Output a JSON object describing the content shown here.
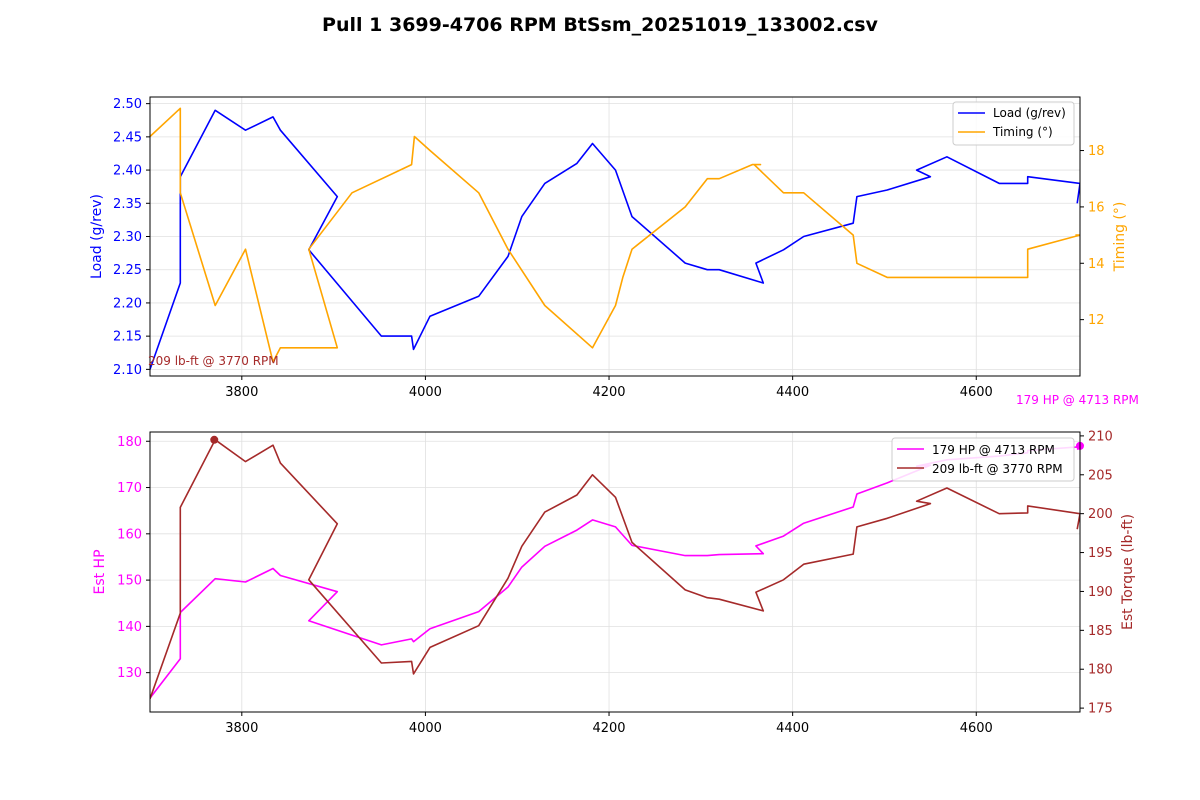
{
  "title": "Pull 1 3699-4706 RPM BtSsm_20251019_133002.csv",
  "colors": {
    "load": "#0000ff",
    "timing": "#ffa500",
    "hp": "#ff00ff",
    "torque": "#a52a2a"
  },
  "chart_data": [
    {
      "type": "line",
      "xlim": [
        3700,
        4713
      ],
      "x_ticks": [
        3800,
        4000,
        4200,
        4400,
        4600
      ],
      "grid": true,
      "legend_position": "top-right",
      "left_axis": {
        "label": "Load (g/rev)",
        "ylim": [
          2.09,
          2.51
        ],
        "ticks": [
          "2.10",
          "2.15",
          "2.20",
          "2.25",
          "2.30",
          "2.35",
          "2.40",
          "2.45",
          "2.50"
        ]
      },
      "right_axis": {
        "label": "Timing (°)",
        "ylim": [
          10,
          19.9
        ],
        "ticks": [
          "12",
          "14",
          "16",
          "18"
        ]
      },
      "series": [
        {
          "name": "Load (g/rev)",
          "axis": "left",
          "x": [
            3700,
            3733,
            3733,
            3771,
            3804,
            3834,
            3842,
            3904,
            3873,
            3952,
            3985,
            3987,
            4005,
            4058,
            4090,
            4105,
            4130,
            4165,
            4182,
            4207,
            4225,
            4283,
            4307,
            4320,
            4368,
            4360,
            4390,
            4412,
            4466,
            4470,
            4503,
            4550,
            4535,
            4568,
            4625,
            4656,
            4656,
            4713,
            4710
          ],
          "y": [
            2.1,
            2.23,
            2.39,
            2.49,
            2.46,
            2.48,
            2.46,
            2.36,
            2.28,
            2.15,
            2.15,
            2.13,
            2.18,
            2.21,
            2.27,
            2.33,
            2.38,
            2.41,
            2.44,
            2.4,
            2.33,
            2.26,
            2.25,
            2.25,
            2.23,
            2.26,
            2.28,
            2.3,
            2.32,
            2.36,
            2.37,
            2.39,
            2.4,
            2.42,
            2.38,
            2.38,
            2.39,
            2.38,
            2.35
          ]
        },
        {
          "name": "Timing (°)",
          "axis": "right",
          "x": [
            3700,
            3733,
            3733,
            3771,
            3804,
            3834,
            3842,
            3904,
            3873,
            3920,
            3985,
            3988,
            4005,
            4058,
            4090,
            4130,
            4182,
            4207,
            4215,
            4225,
            4283,
            4307,
            4320,
            4356,
            4365,
            4358,
            4390,
            4412,
            4466,
            4470,
            4503,
            4550,
            4535,
            4625,
            4656,
            4656,
            4713,
            4708
          ],
          "y": [
            18.5,
            19.5,
            16.5,
            12.5,
            14.5,
            10.5,
            11,
            11,
            14.5,
            16.5,
            17.5,
            18.5,
            18.0,
            16.5,
            14.5,
            12.5,
            11,
            12.5,
            13.5,
            14.5,
            16,
            17,
            17,
            17.5,
            17.5,
            17.5,
            16.5,
            16.5,
            15,
            14,
            13.5,
            13.5,
            13.5,
            13.5,
            13.5,
            14.5,
            15,
            15
          ]
        }
      ],
      "annotations": [
        "209 lb-ft @ 3770 RPM",
        "179 HP @ 4713 RPM"
      ]
    },
    {
      "type": "line",
      "xlim": [
        3700,
        4713
      ],
      "x_ticks": [
        3800,
        4000,
        4200,
        4400,
        4600
      ],
      "grid": true,
      "legend_position": "top-right",
      "left_axis": {
        "label": "Est HP",
        "ylim": [
          121.5,
          182
        ],
        "ticks": [
          "130",
          "140",
          "150",
          "160",
          "170",
          "180"
        ]
      },
      "right_axis": {
        "label": "Est Torque (lb-ft)",
        "ylim": [
          174.5,
          210.5
        ],
        "ticks": [
          "175",
          "180",
          "185",
          "190",
          "195",
          "200",
          "205",
          "210"
        ]
      },
      "series": [
        {
          "name": "179 HP @ 4713 RPM",
          "axis": "left",
          "x": [
            3700,
            3733,
            3733,
            3771,
            3804,
            3834,
            3842,
            3904,
            3873,
            3952,
            3985,
            3987,
            4005,
            4058,
            4090,
            4105,
            4130,
            4165,
            4182,
            4207,
            4225,
            4283,
            4307,
            4320,
            4368,
            4360,
            4390,
            4412,
            4466,
            4470,
            4503,
            4550,
            4535,
            4568,
            4625,
            4656,
            4656,
            4713,
            4710
          ],
          "y": [
            124.5,
            133,
            143,
            150.3,
            149.6,
            152.5,
            151,
            147.5,
            141.2,
            136,
            137.3,
            136.7,
            139.5,
            143.2,
            148.5,
            152.8,
            157.3,
            160.8,
            163,
            161.5,
            157.5,
            155.3,
            155.3,
            155.5,
            155.7,
            157.4,
            159.5,
            162.3,
            165.8,
            168.6,
            171,
            174.8,
            174.6,
            176,
            176.8,
            177.5,
            178,
            178.8,
            178.2
          ]
        },
        {
          "name": "209 lb-ft @ 3770 RPM",
          "axis": "right",
          "x": [
            3700,
            3733,
            3733,
            3771,
            3804,
            3834,
            3842,
            3904,
            3873,
            3952,
            3985,
            3987,
            4005,
            4058,
            4090,
            4105,
            4130,
            4165,
            4182,
            4207,
            4225,
            4283,
            4307,
            4320,
            4368,
            4360,
            4390,
            4412,
            4466,
            4470,
            4503,
            4550,
            4535,
            4568,
            4625,
            4656,
            4656,
            4713,
            4710
          ],
          "y": [
            176.2,
            187.2,
            200.8,
            209.5,
            206.7,
            208.8,
            206.5,
            198.7,
            191.5,
            180.8,
            181.0,
            179.4,
            182.8,
            185.6,
            191.7,
            195.8,
            200.2,
            202.4,
            205,
            202.1,
            196.3,
            190.2,
            189.2,
            189,
            187.5,
            189.9,
            191.5,
            193.5,
            194.8,
            198.3,
            199.4,
            201.3,
            201.6,
            203.3,
            200,
            200.1,
            201,
            200,
            198
          ]
        }
      ],
      "markers": [
        {
          "series": "209 lb-ft @ 3770 RPM",
          "x": 3770,
          "y": 209.5
        },
        {
          "series": "179 HP @ 4713 RPM",
          "x": 4713,
          "y": 179
        }
      ]
    }
  ]
}
